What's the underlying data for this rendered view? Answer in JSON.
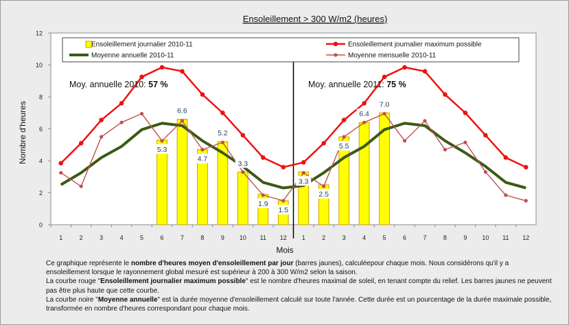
{
  "chart_data": {
    "type": "bar+line",
    "title": "Ensoleillement  > 300 W/m2 (heures)",
    "xlabel": "Mois",
    "ylabel": "Nombre d'heures",
    "ylim": [
      0,
      12
    ],
    "yticks": [
      0,
      2,
      4,
      6,
      8,
      10,
      12
    ],
    "grid": false,
    "legend_position": "top",
    "x_ticks": [
      "1",
      "2",
      "3",
      "4",
      "5",
      "6",
      "7",
      "8",
      "9",
      "10",
      "11",
      "12",
      "1",
      "2",
      "3",
      "4",
      "5",
      "6",
      "7",
      "8",
      "9",
      "10",
      "11",
      "12"
    ],
    "divider_after_index": 11,
    "annotations": [
      {
        "prefix": "Moy. annuelle 2010: ",
        "value": "57 %"
      },
      {
        "prefix": "Moy. annuelle 2011: ",
        "value": "75 %"
      }
    ],
    "series": [
      {
        "name": "Ensoleillement journalier  2010-11",
        "kind": "bar",
        "color": "#ffff00",
        "border": "#c8a000",
        "values": [
          null,
          null,
          null,
          null,
          null,
          5.3,
          6.6,
          4.7,
          5.2,
          3.3,
          1.9,
          1.5,
          3.3,
          2.5,
          5.5,
          6.4,
          7.0,
          null,
          null,
          null,
          null,
          null,
          null,
          null
        ],
        "labels": [
          null,
          null,
          null,
          null,
          null,
          "5.3",
          "6.6",
          "4.7",
          "5.2",
          "3.3",
          "1.9",
          "1.5",
          "3.3",
          "2.5",
          "5.5",
          "6.4",
          "7.0",
          null,
          null,
          null,
          null,
          null,
          null,
          null
        ]
      },
      {
        "name": "Ensoleillement journalier maximum possible",
        "kind": "line",
        "color": "#ee1111",
        "values": [
          3.85,
          5.1,
          6.55,
          7.6,
          9.25,
          9.85,
          9.6,
          8.15,
          7.0,
          5.6,
          4.2,
          3.6,
          3.9,
          5.1,
          6.55,
          7.6,
          9.25,
          9.85,
          9.6,
          8.15,
          7.0,
          5.6,
          4.2,
          3.6
        ]
      },
      {
        "name": "Moyenne annuelle 2010-11",
        "kind": "line",
        "color": "#3a5a14",
        "values": [
          2.5,
          3.25,
          4.2,
          4.9,
          5.95,
          6.35,
          6.2,
          5.25,
          4.5,
          3.65,
          2.65,
          2.3,
          2.45,
          3.25,
          4.2,
          4.9,
          5.95,
          6.35,
          6.2,
          5.25,
          4.5,
          3.65,
          2.65,
          2.3
        ]
      },
      {
        "name": "Moyenne mensuelle 2010-11",
        "kind": "line",
        "color": "#c05050",
        "values": [
          3.25,
          2.4,
          5.5,
          6.4,
          6.95,
          5.25,
          6.5,
          4.7,
          5.15,
          3.3,
          1.85,
          1.5,
          3.25,
          2.4,
          5.5,
          6.4,
          6.95,
          5.25,
          6.5,
          4.7,
          5.15,
          3.3,
          1.85,
          1.5
        ]
      }
    ]
  },
  "caption": [
    [
      {
        "t": "Ce graphique représente le ",
        "b": false
      },
      {
        "t": "nombre d'heures moyen d'ensoleillement par jour",
        "b": true
      },
      {
        "t": " (barres jaunes), calculéepour chaque mois. Nous considérons qu'il y a ensoleillement lorsque le rayonnement global mesuré est supérieur à 200 à 300 W/m2 selon la saison.",
        "b": false
      }
    ],
    [
      {
        "t": "La courbe rouge \"",
        "b": false
      },
      {
        "t": "Ensoleillement journalier  maximum possible",
        "b": true
      },
      {
        "t": "\" est le  nombre d'heures maximal de soleil, en tenant compte du relief. Les barres jaunes ne peuvent pas être plus haute que cette courbe.",
        "b": false
      }
    ],
    [
      {
        "t": "La courbe noire \"",
        "b": false
      },
      {
        "t": "Moyenne annuelle",
        "b": true
      },
      {
        "t": "\" est la durée moyenne d'ensoleillement calculé sur toute l'année. Cette durée est un pourcentage de la durée maximale possible, transformée en nombre d'heures correspondant pour chaque mois.",
        "b": false
      }
    ]
  ]
}
